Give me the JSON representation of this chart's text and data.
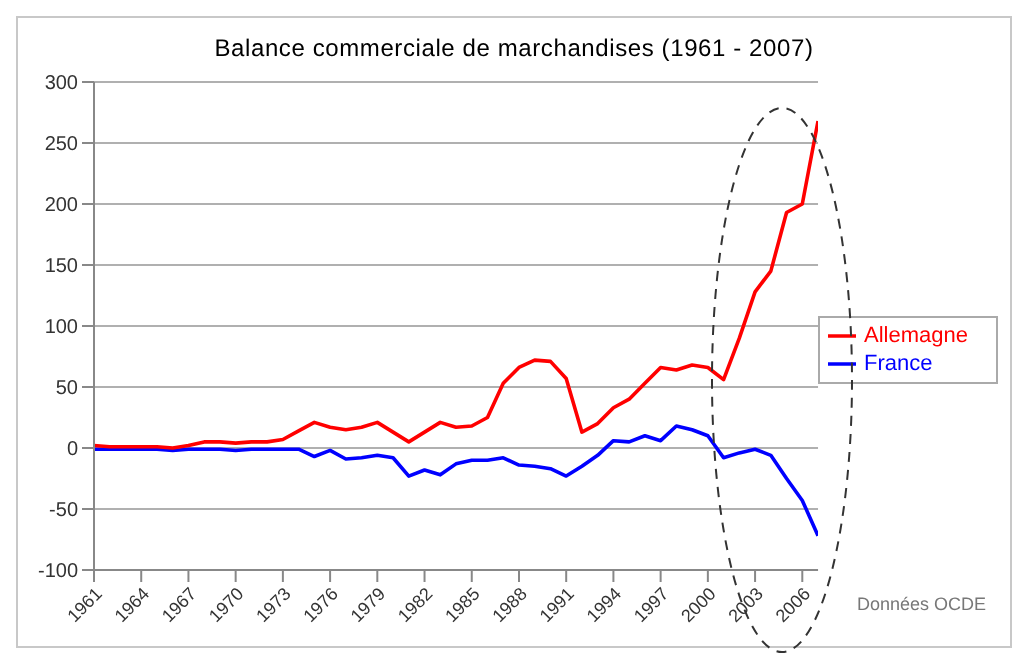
{
  "chart_data": {
    "type": "line",
    "title": "Balance commerciale de marchandises (1961 - 2007)",
    "x": [
      1961,
      1962,
      1963,
      1964,
      1965,
      1966,
      1967,
      1968,
      1969,
      1970,
      1971,
      1972,
      1973,
      1974,
      1975,
      1976,
      1977,
      1978,
      1979,
      1980,
      1981,
      1982,
      1983,
      1984,
      1985,
      1986,
      1987,
      1988,
      1989,
      1990,
      1991,
      1992,
      1993,
      1994,
      1995,
      1996,
      1997,
      1998,
      1999,
      2000,
      2001,
      2002,
      2003,
      2004,
      2005,
      2006,
      2007
    ],
    "series": [
      {
        "name": "France",
        "color": "#0000ff",
        "values": [
          -1,
          -1,
          -1,
          -1,
          -1,
          -2,
          -1,
          -1,
          -1,
          -2,
          -1,
          -1,
          -1,
          -1,
          -7,
          -2,
          -9,
          -8,
          -6,
          -8,
          -23,
          -18,
          -22,
          -13,
          -10,
          -10,
          -8,
          -14,
          -15,
          -17,
          -23,
          -15,
          -6,
          6,
          5,
          10,
          6,
          18,
          15,
          10,
          -8,
          -4,
          -1,
          -6,
          -25,
          -43,
          -72
        ]
      },
      {
        "name": "Allemagne",
        "color": "#ff0000",
        "values": [
          2,
          1,
          1,
          1,
          1,
          0,
          2,
          5,
          5,
          4,
          5,
          5,
          7,
          14,
          21,
          17,
          15,
          17,
          21,
          13,
          5,
          13,
          21,
          17,
          18,
          25,
          53,
          66,
          72,
          71,
          57,
          13,
          20,
          33,
          40,
          53,
          66,
          64,
          68,
          66,
          56,
          90,
          128,
          145,
          193,
          200,
          268
        ]
      }
    ],
    "xlim": [
      1961,
      2007
    ],
    "xticks": [
      1961,
      1964,
      1967,
      1970,
      1973,
      1976,
      1979,
      1982,
      1985,
      1988,
      1991,
      1994,
      1997,
      2000,
      2003,
      2006
    ],
    "ylim": [
      -100,
      300
    ],
    "yticks": [
      -100,
      -50,
      0,
      50,
      100,
      150,
      200,
      250,
      300
    ],
    "grid": "y",
    "legend": "right",
    "marker": "none",
    "line_style": "solid",
    "annotations": [
      "Données OCDE"
    ]
  }
}
